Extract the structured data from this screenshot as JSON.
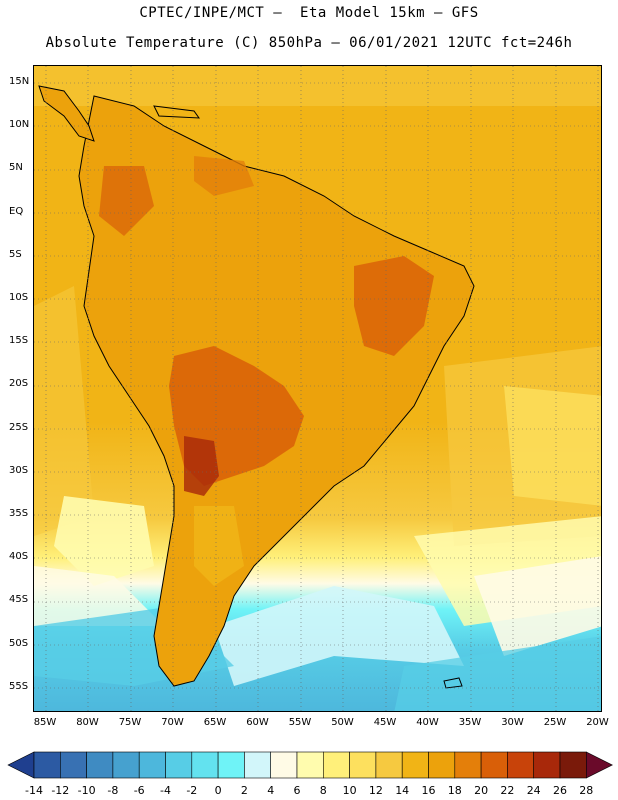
{
  "header": {
    "line1": "CPTEC/INPE/MCT –  Eta Model 15km – GFS",
    "line2": "Absolute Temperature (C) 850hPa – 06/01/2021 12UTC fct=246h"
  },
  "map": {
    "lat_labels": [
      "15N",
      "10N",
      "5N",
      "EQ",
      "5S",
      "10S",
      "15S",
      "20S",
      "25S",
      "30S",
      "35S",
      "40S",
      "45S",
      "50S",
      "55S"
    ],
    "lon_labels": [
      "85W",
      "80W",
      "75W",
      "70W",
      "65W",
      "60W",
      "55W",
      "50W",
      "45W",
      "40W",
      "35W",
      "30W",
      "25W",
      "20W"
    ]
  },
  "colorbar": {
    "labels": [
      "-14",
      "-12",
      "-10",
      "-8",
      "-6",
      "-4",
      "-2",
      "0",
      "2",
      "4",
      "6",
      "8",
      "10",
      "12",
      "14",
      "16",
      "18",
      "20",
      "22",
      "24",
      "26",
      "28"
    ],
    "colors": [
      "#1f3f8f",
      "#2c5aa3",
      "#3871b3",
      "#3f8bc2",
      "#46a1cf",
      "#4db7dc",
      "#57cde6",
      "#63e2ef",
      "#6ff3f7",
      "#d2f6fa",
      "#fffbe6",
      "#fffcae",
      "#fff07a",
      "#fde05e",
      "#f6c940",
      "#f1b416",
      "#eca20c",
      "#e47f0a",
      "#d95f08",
      "#c8430a",
      "#a8280a",
      "#7a1a0a",
      "#6a0a2a"
    ]
  }
}
